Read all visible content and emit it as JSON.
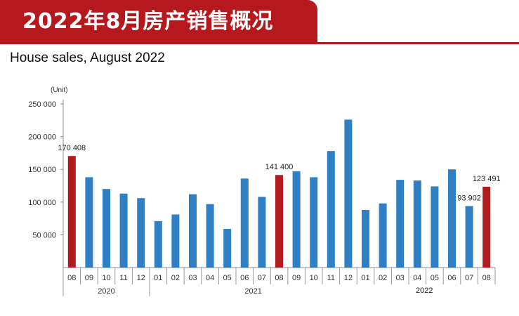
{
  "header": {
    "title": "2022年8月房产销售概况"
  },
  "chart_data": {
    "type": "bar",
    "title": "House sales, August 2022",
    "ylabel": "(Unit)",
    "xlabel": "",
    "ylim": [
      0,
      250000
    ],
    "yticks": [
      50000,
      100000,
      150000,
      200000,
      250000
    ],
    "ytick_labels": [
      "50 000",
      "100 000",
      "150 000",
      "200 000",
      "250 000"
    ],
    "categories": [
      "08",
      "09",
      "10",
      "11",
      "12",
      "01",
      "02",
      "03",
      "04",
      "05",
      "06",
      "07",
      "08",
      "09",
      "10",
      "11",
      "12",
      "01",
      "02",
      "03",
      "04",
      "05",
      "06",
      "07",
      "08"
    ],
    "year_groups": [
      {
        "label": "2020",
        "start": 0,
        "end": 4
      },
      {
        "label": "2021",
        "start": 5,
        "end": 16
      }
    ],
    "values": [
      170408,
      138000,
      120000,
      113000,
      106000,
      71000,
      81000,
      112000,
      97000,
      59000,
      136000,
      108000,
      141400,
      147000,
      138000,
      178000,
      226000,
      88000,
      98000,
      134000,
      133000,
      124000,
      150000,
      93902,
      123491
    ],
    "highlight_indices": [
      0,
      12,
      24
    ],
    "data_labels": [
      {
        "index": 0,
        "text": "170 408"
      },
      {
        "index": 12,
        "text": "141 400"
      },
      {
        "index": 23,
        "text": "93 902"
      },
      {
        "index": 24,
        "text": "123 491"
      }
    ],
    "colors": {
      "normal": "#2f7fc4",
      "highlight": "#b31b1e"
    }
  },
  "footnote": "2022"
}
